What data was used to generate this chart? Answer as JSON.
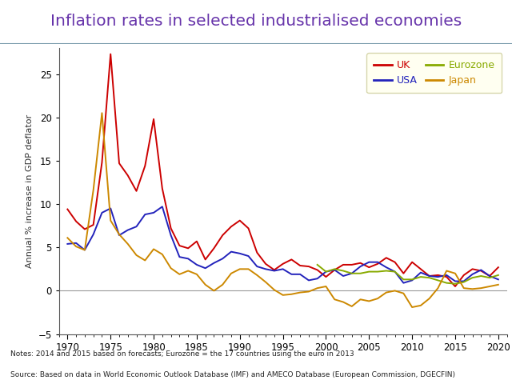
{
  "title": "Inflation rates in selected industrialised economies",
  "ylabel": "Annual % increase in GDP deflator",
  "title_bg": "#aed4dc",
  "title_color": "#6633aa",
  "background_color": "#ffffff",
  "legend_bg": "#ffffee",
  "legend_edge": "#cccc99",
  "notes_line1": "Notes: 2014 and 2015 based on forecasts; Eurozone = the 17 countries using the euro in 2013",
  "notes_line2": "Source: Based on data in World Economic Outlook Database (IMF) and AMECO Database (European Commission, DGECFIN)",
  "ylim": [
    -5,
    28
  ],
  "yticks": [
    -5,
    0,
    5,
    10,
    15,
    20,
    25
  ],
  "xlim": [
    1969,
    2021
  ],
  "years": [
    1970,
    1971,
    1972,
    1973,
    1974,
    1975,
    1976,
    1977,
    1978,
    1979,
    1980,
    1981,
    1982,
    1983,
    1984,
    1985,
    1986,
    1987,
    1988,
    1989,
    1990,
    1991,
    1992,
    1993,
    1994,
    1995,
    1996,
    1997,
    1998,
    1999,
    2000,
    2001,
    2002,
    2003,
    2004,
    2005,
    2006,
    2007,
    2008,
    2009,
    2010,
    2011,
    2012,
    2013,
    2014,
    2015,
    2016,
    2017,
    2018,
    2019,
    2020
  ],
  "uk": [
    9.4,
    8.0,
    7.1,
    7.6,
    14.8,
    27.3,
    14.7,
    13.3,
    11.5,
    14.4,
    19.8,
    11.8,
    7.2,
    5.2,
    4.9,
    5.7,
    3.6,
    4.9,
    6.4,
    7.4,
    8.1,
    7.2,
    4.4,
    3.1,
    2.4,
    3.1,
    3.6,
    2.9,
    2.8,
    2.4,
    1.6,
    2.4,
    3.0,
    3.0,
    3.2,
    2.7,
    3.1,
    3.8,
    3.3,
    2.0,
    3.3,
    2.5,
    1.7,
    1.8,
    1.6,
    0.5,
    1.8,
    2.5,
    2.3,
    1.7,
    2.7
  ],
  "usa": [
    5.4,
    5.5,
    4.7,
    6.5,
    9.0,
    9.5,
    6.4,
    7.0,
    7.4,
    8.8,
    9.0,
    9.7,
    6.4,
    3.9,
    3.7,
    3.0,
    2.6,
    3.2,
    3.7,
    4.5,
    4.3,
    4.0,
    2.8,
    2.5,
    2.3,
    2.5,
    1.9,
    1.9,
    1.2,
    1.4,
    2.2,
    2.4,
    1.7,
    2.0,
    2.8,
    3.3,
    3.3,
    2.7,
    2.2,
    0.9,
    1.2,
    2.1,
    1.7,
    1.6,
    1.8,
    1.1,
    1.1,
    1.9,
    2.4,
    1.7,
    1.3
  ],
  "eurozone": [
    null,
    null,
    null,
    null,
    null,
    null,
    null,
    null,
    null,
    null,
    null,
    null,
    null,
    null,
    null,
    null,
    null,
    null,
    null,
    null,
    null,
    null,
    null,
    null,
    null,
    null,
    null,
    null,
    null,
    3.0,
    2.2,
    2.5,
    2.3,
    2.0,
    2.0,
    2.2,
    2.2,
    2.3,
    2.2,
    1.3,
    1.3,
    1.6,
    1.5,
    1.2,
    0.9,
    0.8,
    1.0,
    1.5,
    1.7,
    1.5,
    1.8
  ],
  "japan": [
    6.1,
    5.1,
    4.7,
    11.6,
    20.5,
    8.1,
    6.5,
    5.4,
    4.1,
    3.5,
    4.8,
    4.2,
    2.6,
    1.9,
    2.3,
    1.9,
    0.7,
    0.0,
    0.7,
    2.0,
    2.5,
    2.5,
    1.8,
    1.0,
    0.1,
    -0.5,
    -0.4,
    -0.2,
    -0.1,
    0.3,
    0.5,
    -1.0,
    -1.3,
    -1.8,
    -1.0,
    -1.2,
    -0.9,
    -0.2,
    0.0,
    -0.3,
    -1.9,
    -1.7,
    -0.9,
    0.3,
    2.3,
    2.0,
    0.3,
    0.2,
    0.3,
    0.5,
    0.7
  ],
  "uk_color": "#cc0000",
  "usa_color": "#2222bb",
  "eurozone_color": "#88aa00",
  "japan_color": "#cc8800"
}
